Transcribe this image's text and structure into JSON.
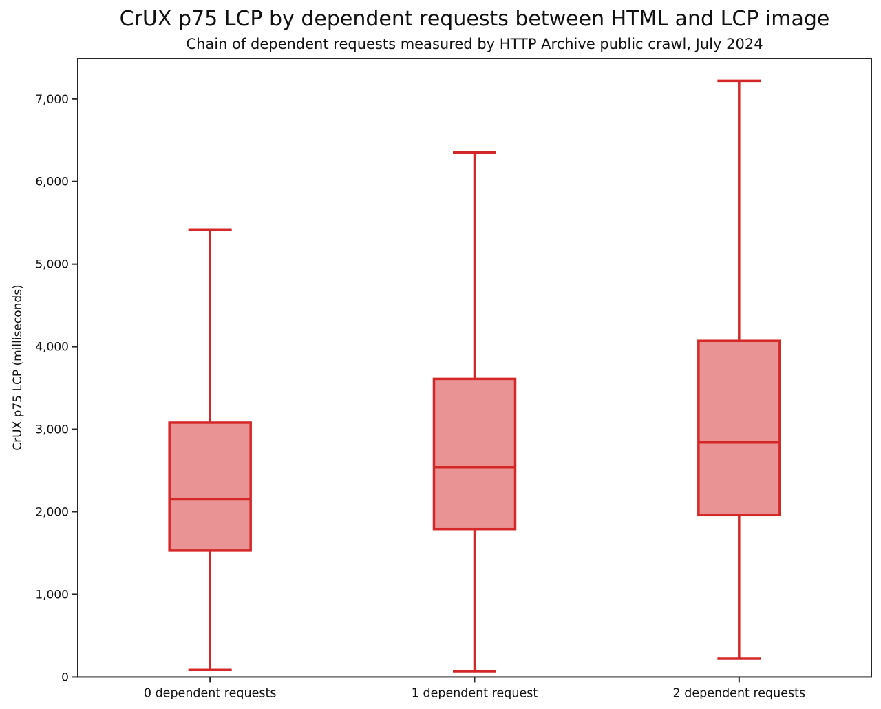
{
  "page": {
    "background": "#ffffff"
  },
  "chart_data": {
    "type": "boxplot",
    "title": "CrUX p75 LCP by dependent requests between HTML and LCP image",
    "subtitle": "Chain of dependent requests measured by HTTP Archive public crawl, July 2024",
    "ylabel": "CrUX p75 LCP (milliseconds)",
    "xlabel": "",
    "units": "milliseconds",
    "categories": [
      "0 dependent requests",
      "1 dependent request",
      "2 dependent requests"
    ],
    "series": [
      {
        "name": "0 dependent requests",
        "whisker_low": 85,
        "q1": 1530,
        "median": 2150,
        "q3": 3080,
        "whisker_high": 5420
      },
      {
        "name": "1 dependent request",
        "whisker_low": 70,
        "q1": 1790,
        "median": 2540,
        "q3": 3610,
        "whisker_high": 6350
      },
      {
        "name": "2 dependent requests",
        "whisker_low": 220,
        "q1": 1960,
        "median": 2840,
        "q3": 4070,
        "whisker_high": 7220
      }
    ],
    "ylim": [
      0,
      7490
    ],
    "xlim": [
      0,
      3
    ],
    "yticks": {
      "values": [
        0,
        1000,
        2000,
        3000,
        4000,
        5000,
        6000,
        7000
      ],
      "labels": [
        "0",
        "1,000",
        "2,000",
        "3,000",
        "4,000",
        "5,000",
        "6,000",
        "7,000"
      ]
    },
    "grid": false,
    "legend": "none",
    "colors": {
      "box_fill": "#ea9394",
      "box_edge": "#d62728",
      "axis": "#262626",
      "text": "#111111"
    }
  }
}
